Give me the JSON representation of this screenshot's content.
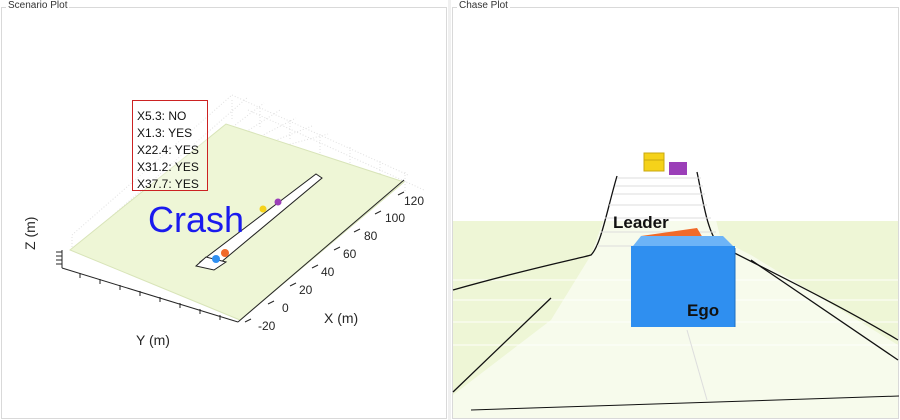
{
  "panels": {
    "scenario": {
      "title": "Scenario Plot",
      "collision_flags": [
        {
          "label": "X5.3: NO"
        },
        {
          "label": "X1.3: YES"
        },
        {
          "label": "X22.4: YES"
        },
        {
          "label": "X31.2: YES"
        },
        {
          "label": "X37.7: YES"
        }
      ],
      "crash_label": "Crash",
      "axes": {
        "x_title": "X (m)",
        "y_title": "Y (m)",
        "z_title": "Z (m)",
        "x_ticks": [
          "120",
          "100",
          "80",
          "60",
          "40",
          "20",
          "0",
          "-20"
        ]
      }
    },
    "chase": {
      "title": "Chase Plot",
      "leader_label": "Leader",
      "ego_label": "Ego"
    }
  },
  "colors": {
    "ground": "#eef6d6",
    "road": "#ffffff",
    "ego": "#2f8ff0",
    "leader": "#f06a2a",
    "vehicle_yellow": "#f5d21a",
    "vehicle_purple": "#9b3fb8",
    "crash_text": "#1a1aee",
    "legend_border": "#cc2222"
  }
}
